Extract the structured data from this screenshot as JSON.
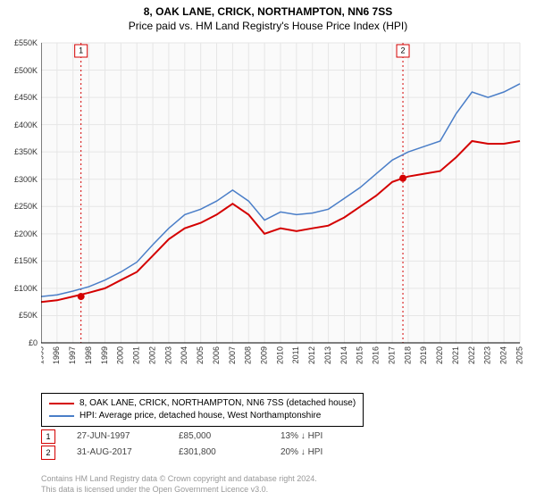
{
  "title": "8, OAK LANE, CRICK, NORTHAMPTON, NN6 7SS",
  "subtitle": "Price paid vs. HM Land Registry's House Price Index (HPI)",
  "chart": {
    "type": "line",
    "background_color": "#ffffff",
    "plot_bgcolor": "#fafafa",
    "grid_color": "#e6e6e6",
    "axis_color": "#000000",
    "label_fontsize": 9,
    "x_years": [
      1995,
      1996,
      1997,
      1998,
      1999,
      2000,
      2001,
      2002,
      2003,
      2004,
      2005,
      2006,
      2007,
      2008,
      2009,
      2010,
      2011,
      2012,
      2013,
      2014,
      2015,
      2016,
      2017,
      2018,
      2019,
      2020,
      2021,
      2022,
      2023,
      2024,
      2025
    ],
    "ylim": [
      0,
      550000
    ],
    "y_ticks": [
      0,
      50000,
      100000,
      150000,
      200000,
      250000,
      300000,
      350000,
      400000,
      450000,
      500000,
      550000
    ],
    "y_tick_labels": [
      "£0",
      "£50K",
      "£100K",
      "£150K",
      "£200K",
      "£250K",
      "£300K",
      "£350K",
      "£400K",
      "£450K",
      "£500K",
      "£550K"
    ],
    "y_prefix": "£",
    "series": [
      {
        "name": "price_paid",
        "label": "8, OAK LANE, CRICK, NORTHAMPTON, NN6 7SS (detached house)",
        "color": "#d40000",
        "line_width": 2,
        "data_x": [
          1995,
          1996,
          1997,
          1998,
          1999,
          2000,
          2001,
          2002,
          2003,
          2004,
          2005,
          2006,
          2007,
          2008,
          2009,
          2010,
          2011,
          2012,
          2013,
          2014,
          2015,
          2016,
          2017,
          2017.67,
          2018,
          2019,
          2020,
          2021,
          2022,
          2023,
          2024,
          2025
        ],
        "data_y": [
          75000,
          78000,
          85000,
          92000,
          100000,
          115000,
          130000,
          160000,
          190000,
          210000,
          220000,
          235000,
          255000,
          235000,
          200000,
          210000,
          205000,
          210000,
          215000,
          230000,
          250000,
          270000,
          295000,
          301800,
          305000,
          310000,
          315000,
          340000,
          370000,
          365000,
          365000,
          370000
        ]
      },
      {
        "name": "hpi",
        "label": "HPI: Average price, detached house, West Northamptonshire",
        "color": "#4a7ec8",
        "line_width": 1.5,
        "data_x": [
          1995,
          1996,
          1997,
          1998,
          1999,
          2000,
          2001,
          2002,
          2003,
          2004,
          2005,
          2006,
          2007,
          2008,
          2009,
          2010,
          2011,
          2012,
          2013,
          2014,
          2015,
          2016,
          2017,
          2018,
          2019,
          2020,
          2021,
          2022,
          2023,
          2024,
          2025
        ],
        "data_y": [
          85000,
          88000,
          95000,
          103000,
          115000,
          130000,
          148000,
          180000,
          210000,
          235000,
          245000,
          260000,
          280000,
          260000,
          225000,
          240000,
          235000,
          238000,
          245000,
          265000,
          285000,
          310000,
          335000,
          350000,
          360000,
          370000,
          420000,
          460000,
          450000,
          460000,
          475000
        ]
      }
    ],
    "sale_markers": [
      {
        "num": "1",
        "x": 1997.5,
        "y": 85000,
        "color": "#d40000"
      },
      {
        "num": "2",
        "x": 2017.67,
        "y": 301800,
        "color": "#d40000"
      }
    ],
    "marker_line_color": "#d40000",
    "marker_line_dash": "2,3"
  },
  "legend": {
    "items": [
      {
        "color": "#d40000",
        "label": "8, OAK LANE, CRICK, NORTHAMPTON, NN6 7SS (detached house)"
      },
      {
        "color": "#4a7ec8",
        "label": "HPI: Average price, detached house, West Northamptonshire"
      }
    ]
  },
  "sales_table": {
    "rows": [
      {
        "num": "1",
        "color": "#d40000",
        "date": "27-JUN-1997",
        "price": "£85,000",
        "delta": "13% ↓ HPI"
      },
      {
        "num": "2",
        "color": "#d40000",
        "date": "31-AUG-2017",
        "price": "£301,800",
        "delta": "20% ↓ HPI"
      }
    ]
  },
  "footer": {
    "line1": "Contains HM Land Registry data © Crown copyright and database right 2024.",
    "line2": "This data is licensed under the Open Government Licence v3.0."
  }
}
